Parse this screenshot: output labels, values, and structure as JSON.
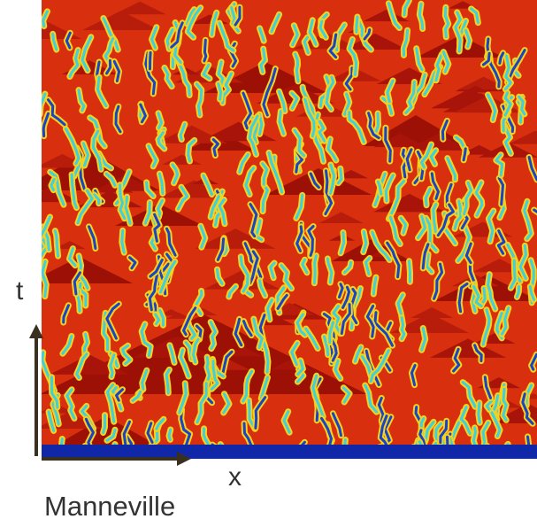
{
  "labels": {
    "t": "t",
    "x": "x",
    "credit": "Manneville"
  }
}
